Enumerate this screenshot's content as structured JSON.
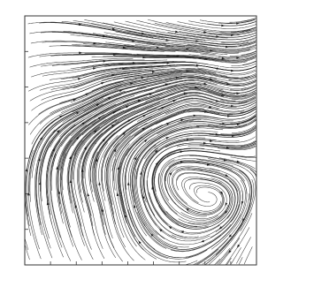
{
  "chart_data": {
    "type": "streamline",
    "title": "",
    "xlabel": "",
    "ylabel": "",
    "x_ticks": [
      "",
      "",
      "",
      "",
      "",
      "",
      "",
      "",
      "",
      ""
    ],
    "y_ticks": [
      "",
      "",
      "",
      "",
      "",
      "",
      "",
      ""
    ],
    "grid": false,
    "legend": "none",
    "line_color": "#1c1c1c",
    "axis_color": "#333333",
    "background": "#ffffff"
  }
}
